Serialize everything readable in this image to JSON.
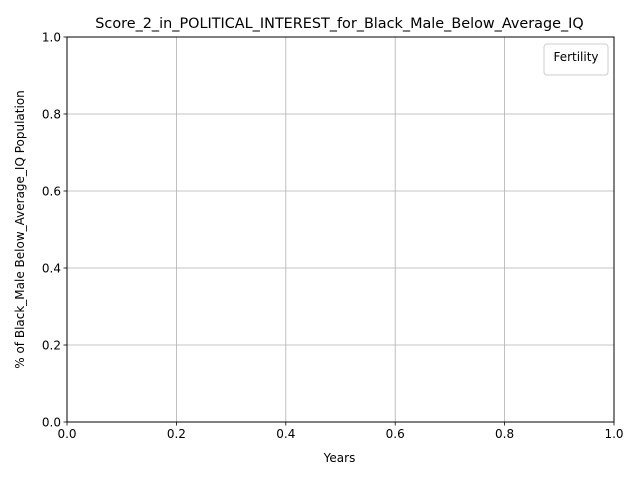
{
  "chart_data": {
    "type": "line",
    "title": "Score_2_in_POLITICAL_INTEREST_for_Black_Male_Below_Average_IQ",
    "xlabel": "Years",
    "ylabel": "% of Black_Male Below_Average_IQ Population",
    "xlim": [
      0.0,
      1.0
    ],
    "ylim": [
      0.0,
      1.0
    ],
    "x_ticks": [
      "0.0",
      "0.2",
      "0.4",
      "0.6",
      "0.8",
      "1.0"
    ],
    "y_ticks": [
      "0.0",
      "0.2",
      "0.4",
      "0.6",
      "0.8",
      "1.0"
    ],
    "grid": true,
    "legend": {
      "title": "Fertility",
      "placement": "top-right",
      "entries": []
    },
    "series": []
  },
  "colors": {
    "grid": "#b0b0b0",
    "axes": "#000000",
    "background": "#ffffff"
  }
}
